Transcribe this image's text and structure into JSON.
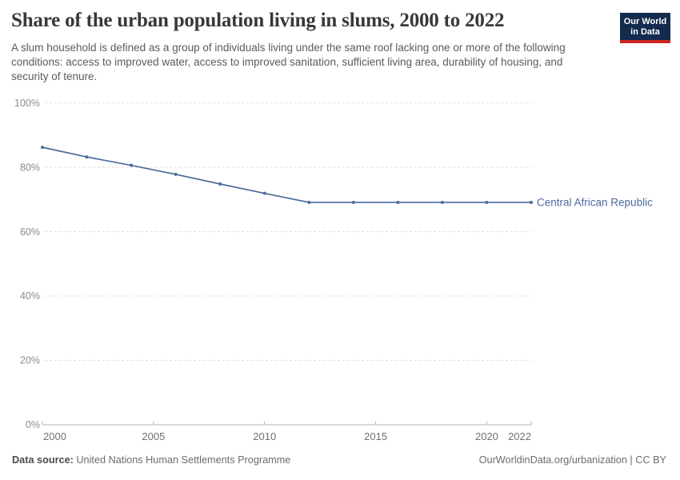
{
  "header": {
    "title": "Share of the urban population living in slums, 2000 to 2022",
    "subtitle": "A slum household is defined as a group of individuals living under the same roof lacking one or more of the following conditions: access to improved water, access to improved sanitation, sufficient living area, durability of housing, and security of tenure.",
    "logo": {
      "line1": "Our World",
      "line2": "in Data",
      "bg_color": "#122B4E",
      "accent_color": "#CE261E"
    }
  },
  "chart_data": {
    "type": "line",
    "title": "Share of the urban population living in slums, 2000 to 2022",
    "x": [
      2000,
      2002,
      2004,
      2006,
      2008,
      2010,
      2012,
      2014,
      2016,
      2018,
      2020,
      2022
    ],
    "series": [
      {
        "name": "Central African Republic",
        "color": "#4C6A9C",
        "values": [
          86.2,
          83.2,
          80.6,
          77.8,
          74.8,
          71.9,
          69.1,
          69.1,
          69.1,
          69.1,
          69.1,
          69.1
        ]
      }
    ],
    "xlim": [
      2000,
      2022
    ],
    "ylim": [
      0,
      100
    ],
    "xticks": [
      {
        "value": 2000,
        "label": "2000"
      },
      {
        "value": 2005,
        "label": "2005"
      },
      {
        "value": 2010,
        "label": "2010"
      },
      {
        "value": 2015,
        "label": "2015"
      },
      {
        "value": 2020,
        "label": "2020"
      },
      {
        "value": 2022,
        "label": "2022"
      }
    ],
    "yticks": [
      {
        "value": 0,
        "label": "0%"
      },
      {
        "value": 20,
        "label": "20%"
      },
      {
        "value": 40,
        "label": "40%"
      },
      {
        "value": 60,
        "label": "60%"
      },
      {
        "value": 80,
        "label": "80%"
      },
      {
        "value": 100,
        "label": "100%"
      }
    ],
    "grid": "horizontal-dashed",
    "legend_position": "end-of-line-label"
  },
  "footer": {
    "source_label": "Data source:",
    "source_value": "United Nations Human Settlements Programme",
    "attribution": "OurWorldinData.org/urbanization | CC BY"
  }
}
